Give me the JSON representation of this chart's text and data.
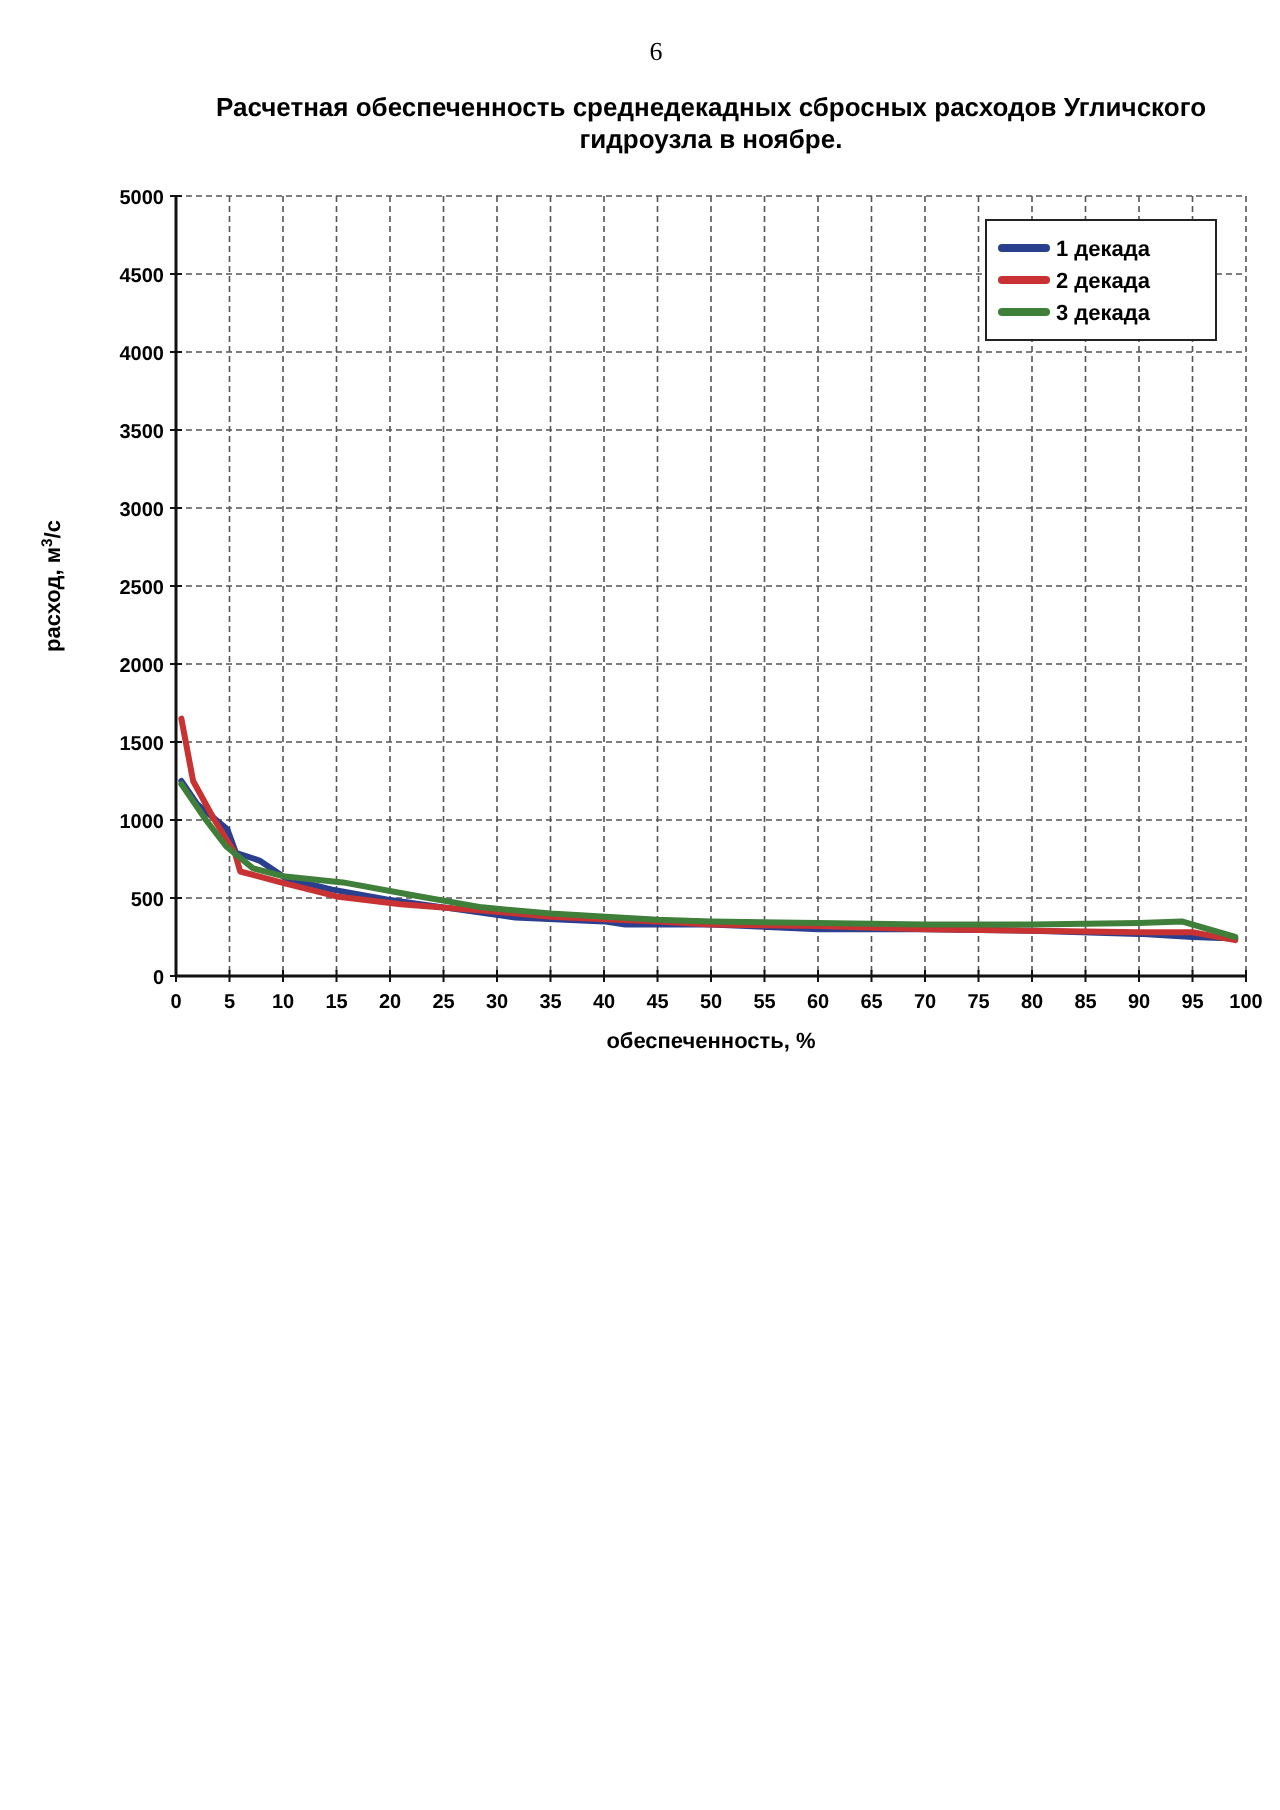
{
  "chart_data": {
    "type": "line",
    "title": "Расчетная обеспеченность среднедекадных сбросных расходов Угличского гидроузла в ноябре.",
    "xlabel": "обеспеченность, %",
    "ylabel": "расход, м$^{3}$/с",
    "annotations": [
      "6"
    ],
    "xlim": [
      0,
      100
    ],
    "xticks": [
      0,
      5,
      10,
      15,
      20,
      25,
      30,
      35,
      40,
      45,
      50,
      55,
      60,
      65,
      70,
      75,
      80,
      85,
      90,
      95,
      100
    ],
    "ylim": [
      0,
      5000
    ],
    "yticks": [
      0,
      500,
      1000,
      1500,
      2000,
      2500,
      3000,
      3500,
      4000,
      4500,
      5000
    ],
    "grid": true,
    "legend": "top right",
    "marker": "none",
    "line_style": "solid",
    "series": [
      {
        "name": "1 декада",
        "color": "#2b3f8f",
        "x": [
          0.5,
          2,
          4.8,
          5.6,
          7.8,
          10.3,
          14.5,
          19.7,
          25,
          31.7,
          40,
          42,
          50,
          60,
          70,
          80,
          90,
          95,
          99
        ],
        "values": [
          1250,
          1100,
          940,
          790,
          740,
          625,
          555,
          490,
          440,
          375,
          350,
          330,
          330,
          300,
          300,
          290,
          270,
          250,
          240
        ]
      },
      {
        "name": "2 декада",
        "color": "#c83232",
        "x": [
          0.5,
          1.6,
          3.6,
          5.5,
          6,
          9.8,
          15,
          21,
          28.6,
          35,
          45,
          50,
          60,
          70,
          80,
          90,
          95,
          99
        ],
        "values": [
          1650,
          1250,
          1000,
          790,
          670,
          600,
          510,
          460,
          420,
          380,
          350,
          330,
          320,
          300,
          290,
          280,
          280,
          230
        ]
      },
      {
        "name": "3 декада",
        "color": "#3f7f3a",
        "x": [
          0.5,
          2.8,
          4.7,
          7.2,
          10,
          15.6,
          22.8,
          28.6,
          35,
          45,
          50,
          60,
          70,
          80,
          90,
          94,
          99
        ],
        "values": [
          1230,
          1000,
          830,
          690,
          640,
          600,
          510,
          440,
          400,
          360,
          350,
          340,
          330,
          330,
          340,
          350,
          250
        ]
      }
    ]
  }
}
